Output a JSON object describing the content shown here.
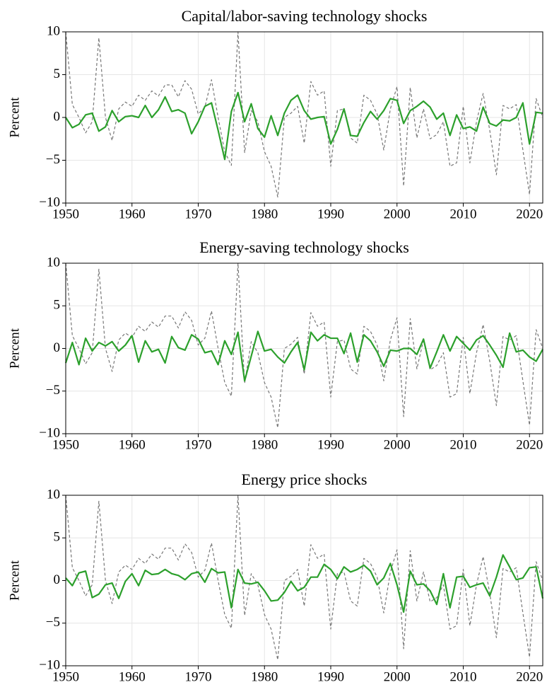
{
  "chart_data": [
    {
      "type": "line",
      "title": "Capital/labor-saving technology shocks",
      "ylabel": "Percent",
      "x": [
        1950,
        1951,
        1952,
        1953,
        1954,
        1955,
        1956,
        1957,
        1958,
        1959,
        1960,
        1961,
        1962,
        1963,
        1964,
        1965,
        1966,
        1967,
        1968,
        1969,
        1970,
        1971,
        1972,
        1973,
        1974,
        1975,
        1976,
        1977,
        1978,
        1979,
        1980,
        1981,
        1982,
        1983,
        1984,
        1985,
        1986,
        1987,
        1988,
        1989,
        1990,
        1991,
        1992,
        1993,
        1994,
        1995,
        1996,
        1997,
        1998,
        1999,
        2000,
        2001,
        2002,
        2003,
        2004,
        2005,
        2006,
        2007,
        2008,
        2009,
        2010,
        2011,
        2012,
        2013,
        2014,
        2015,
        2016,
        2017,
        2018,
        2019,
        2020,
        2021,
        2022
      ],
      "xlim": [
        1950,
        2022
      ],
      "xticks": [
        1950,
        1960,
        1970,
        1980,
        1990,
        2000,
        2010,
        2020
      ],
      "ylim": [
        -10,
        10
      ],
      "yticks": [
        {
          "value": -10,
          "label": "−10"
        },
        {
          "value": -5,
          "label": "−5"
        },
        0,
        5,
        10
      ],
      "grid": true,
      "series": [
        {
          "color": "#777777",
          "dash": true,
          "values": [
            10,
            1.5,
            0,
            -1.8,
            -0.5,
            9.3,
            0,
            -2.7,
            1,
            1.8,
            1.3,
            2.6,
            2,
            3.1,
            2.5,
            3.8,
            3.8,
            2.4,
            4.3,
            3.3,
            0.4,
            1.2,
            4.4,
            0,
            -4,
            -5.6,
            10,
            -4.1,
            0.8,
            -0.5,
            -4,
            -5.7,
            -9.3,
            0,
            0.5,
            1.3,
            -3,
            4.2,
            2.6,
            3.1,
            -5.7,
            0.8,
            1,
            -2.4,
            -3,
            2.6,
            2,
            0.4,
            -3.8,
            1,
            3.6,
            -8,
            3.5,
            -2.4,
            1,
            -2.5,
            -2,
            -0.5,
            -5.7,
            -5.3,
            1.3,
            -5.3,
            -0.5,
            2.8,
            -1.5,
            -6.7,
            1.4,
            1,
            1.5,
            -3.8,
            -9,
            2.2,
            0
          ]
        },
        {
          "color": "#2ca02c",
          "dash": false,
          "values": [
            0,
            -1.2,
            -0.8,
            0.3,
            0.5,
            -1.6,
            -1.1,
            0.8,
            -0.5,
            0.1,
            0.2,
            0,
            1.4,
            0,
            0.9,
            2.4,
            0.7,
            0.9,
            0.5,
            -1.9,
            -0.5,
            1.3,
            1.7,
            -1.5,
            -4.9,
            0.7,
            2.9,
            -0.5,
            1.6,
            -1.3,
            -2.3,
            0.2,
            -2.1,
            0.5,
            2,
            2.6,
            0.8,
            -0.2,
            0,
            0.1,
            -3.1,
            -1.4,
            1,
            -2.1,
            -2.2,
            -0.6,
            0.7,
            -0.2,
            0.8,
            2.2,
            2,
            -0.7,
            0.8,
            1.3,
            1.9,
            1.2,
            -0.2,
            0.5,
            -2.1,
            0.3,
            -1.3,
            -1.1,
            -1.6,
            1.2,
            -0.7,
            -1,
            -0.3,
            -0.4,
            0,
            1.7,
            -3.1,
            0.6,
            0.5
          ]
        }
      ]
    },
    {
      "type": "line",
      "title": "Energy-saving technology shocks",
      "ylabel": "Percent",
      "x": [
        1950,
        1951,
        1952,
        1953,
        1954,
        1955,
        1956,
        1957,
        1958,
        1959,
        1960,
        1961,
        1962,
        1963,
        1964,
        1965,
        1966,
        1967,
        1968,
        1969,
        1970,
        1971,
        1972,
        1973,
        1974,
        1975,
        1976,
        1977,
        1978,
        1979,
        1980,
        1981,
        1982,
        1983,
        1984,
        1985,
        1986,
        1987,
        1988,
        1989,
        1990,
        1991,
        1992,
        1993,
        1994,
        1995,
        1996,
        1997,
        1998,
        1999,
        2000,
        2001,
        2002,
        2003,
        2004,
        2005,
        2006,
        2007,
        2008,
        2009,
        2010,
        2011,
        2012,
        2013,
        2014,
        2015,
        2016,
        2017,
        2018,
        2019,
        2020,
        2021,
        2022
      ],
      "xlim": [
        1950,
        2022
      ],
      "xticks": [
        1950,
        1960,
        1970,
        1980,
        1990,
        2000,
        2010,
        2020
      ],
      "ylim": [
        -10,
        10
      ],
      "yticks": [
        {
          "value": -10,
          "label": "−10"
        },
        {
          "value": -5,
          "label": "−5"
        },
        0,
        5,
        10
      ],
      "grid": true,
      "series": [
        {
          "color": "#777777",
          "dash": true,
          "values": [
            10,
            1.5,
            0,
            -1.8,
            -0.5,
            9.3,
            0,
            -2.7,
            1,
            1.8,
            1.3,
            2.6,
            2,
            3.1,
            2.5,
            3.8,
            3.8,
            2.4,
            4.3,
            3.3,
            0.4,
            1.2,
            4.4,
            0,
            -4,
            -5.6,
            10,
            -4.1,
            0.8,
            -0.5,
            -4,
            -5.7,
            -9.3,
            0,
            0.5,
            1.3,
            -3,
            4.2,
            2.6,
            3.1,
            -5.7,
            0.8,
            1,
            -2.4,
            -3,
            2.6,
            2,
            0.4,
            -3.8,
            1,
            3.6,
            -8,
            3.5,
            -2.4,
            1,
            -2.5,
            -2,
            -0.5,
            -5.7,
            -5.3,
            1.3,
            -5.3,
            -0.5,
            2.8,
            -1.5,
            -6.7,
            1.4,
            1,
            1.5,
            -3.8,
            -9,
            2.2,
            0
          ]
        },
        {
          "color": "#2ca02c",
          "dash": false,
          "values": [
            -1.7,
            0.7,
            -1.9,
            1.2,
            -0.3,
            0.7,
            0.3,
            0.8,
            -0.3,
            0.4,
            1.5,
            -1.6,
            0.9,
            -0.4,
            -0.1,
            -1.7,
            1.4,
            0.1,
            -0.2,
            1.6,
            1.1,
            -0.5,
            -0.3,
            -1.9,
            0.9,
            -0.7,
            1.9,
            -3.8,
            -0.9,
            2,
            -0.3,
            -0.1,
            -1,
            -1.7,
            -0.4,
            0.7,
            -2.5,
            1.9,
            0.9,
            1.6,
            1.2,
            1.2,
            -0.6,
            1.8,
            -1.6,
            1.6,
            0.9,
            -0.4,
            -2.1,
            -0.2,
            -0.3,
            0,
            0,
            -0.7,
            1.1,
            -2.3,
            -0.4,
            1.6,
            -0.3,
            1.4,
            0.6,
            -0.2,
            1,
            1.5,
            0.4,
            -0.8,
            -2.2,
            1.8,
            -0.4,
            -0.2,
            -1,
            -1.5,
            -0.1
          ]
        }
      ]
    },
    {
      "type": "line",
      "title": "Energy price shocks",
      "ylabel": "Percent",
      "x": [
        1950,
        1951,
        1952,
        1953,
        1954,
        1955,
        1956,
        1957,
        1958,
        1959,
        1960,
        1961,
        1962,
        1963,
        1964,
        1965,
        1966,
        1967,
        1968,
        1969,
        1970,
        1971,
        1972,
        1973,
        1974,
        1975,
        1976,
        1977,
        1978,
        1979,
        1980,
        1981,
        1982,
        1983,
        1984,
        1985,
        1986,
        1987,
        1988,
        1989,
        1990,
        1991,
        1992,
        1993,
        1994,
        1995,
        1996,
        1997,
        1998,
        1999,
        2000,
        2001,
        2002,
        2003,
        2004,
        2005,
        2006,
        2007,
        2008,
        2009,
        2010,
        2011,
        2012,
        2013,
        2014,
        2015,
        2016,
        2017,
        2018,
        2019,
        2020,
        2021,
        2022
      ],
      "xlim": [
        1950,
        2022
      ],
      "xticks": [
        1950,
        1960,
        1970,
        1980,
        1990,
        2000,
        2010,
        2020
      ],
      "ylim": [
        -10,
        10
      ],
      "yticks": [
        {
          "value": -10,
          "label": "−10"
        },
        {
          "value": -5,
          "label": "−5"
        },
        0,
        5,
        10
      ],
      "grid": true,
      "series": [
        {
          "color": "#777777",
          "dash": true,
          "values": [
            10,
            1.5,
            0,
            -1.8,
            -0.5,
            9.3,
            0,
            -2.7,
            1,
            1.8,
            1.3,
            2.6,
            2,
            3.1,
            2.5,
            3.8,
            3.8,
            2.4,
            4.3,
            3.3,
            0.4,
            1.2,
            4.4,
            0,
            -4,
            -5.6,
            10,
            -4.1,
            0.8,
            -0.5,
            -4,
            -5.7,
            -9.3,
            0,
            0.5,
            1.3,
            -3,
            4.2,
            2.6,
            3.1,
            -5.7,
            0.8,
            1,
            -2.4,
            -3,
            2.6,
            2,
            0.4,
            -3.8,
            1,
            3.6,
            -8,
            3.5,
            -2.4,
            1,
            -2.5,
            -2,
            -0.5,
            -5.7,
            -5.3,
            1.3,
            -5.3,
            -0.5,
            2.8,
            -1.5,
            -6.7,
            1.4,
            1,
            1.5,
            -3.8,
            -9,
            2.2,
            0
          ]
        },
        {
          "color": "#2ca02c",
          "dash": false,
          "values": [
            0.3,
            -0.6,
            0.9,
            1.1,
            -2,
            -1.6,
            -0.5,
            -0.3,
            -2.1,
            -0.1,
            0.8,
            -0.6,
            1.2,
            0.7,
            0.8,
            1.3,
            0.8,
            0.6,
            0.1,
            0.8,
            1,
            -0.2,
            1.4,
            0.9,
            1,
            -3.2,
            1.3,
            -0.3,
            -0.4,
            -0.2,
            -1.2,
            -2.4,
            -2.3,
            -1.4,
            -0.1,
            -1.2,
            -0.8,
            0.4,
            0.4,
            1.9,
            1.3,
            0.2,
            1.6,
            1,
            1.3,
            1.8,
            1.1,
            -0.5,
            0.3,
            2,
            -0.5,
            -3.7,
            1.1,
            -0.5,
            -0.4,
            -1.2,
            -2.8,
            0.8,
            -3.2,
            0.4,
            0.5,
            -0.8,
            -0.5,
            -0.3,
            -1.8,
            0.4,
            3,
            1.6,
            0.1,
            0.3,
            1.5,
            1.6,
            -2.1
          ]
        }
      ]
    }
  ]
}
